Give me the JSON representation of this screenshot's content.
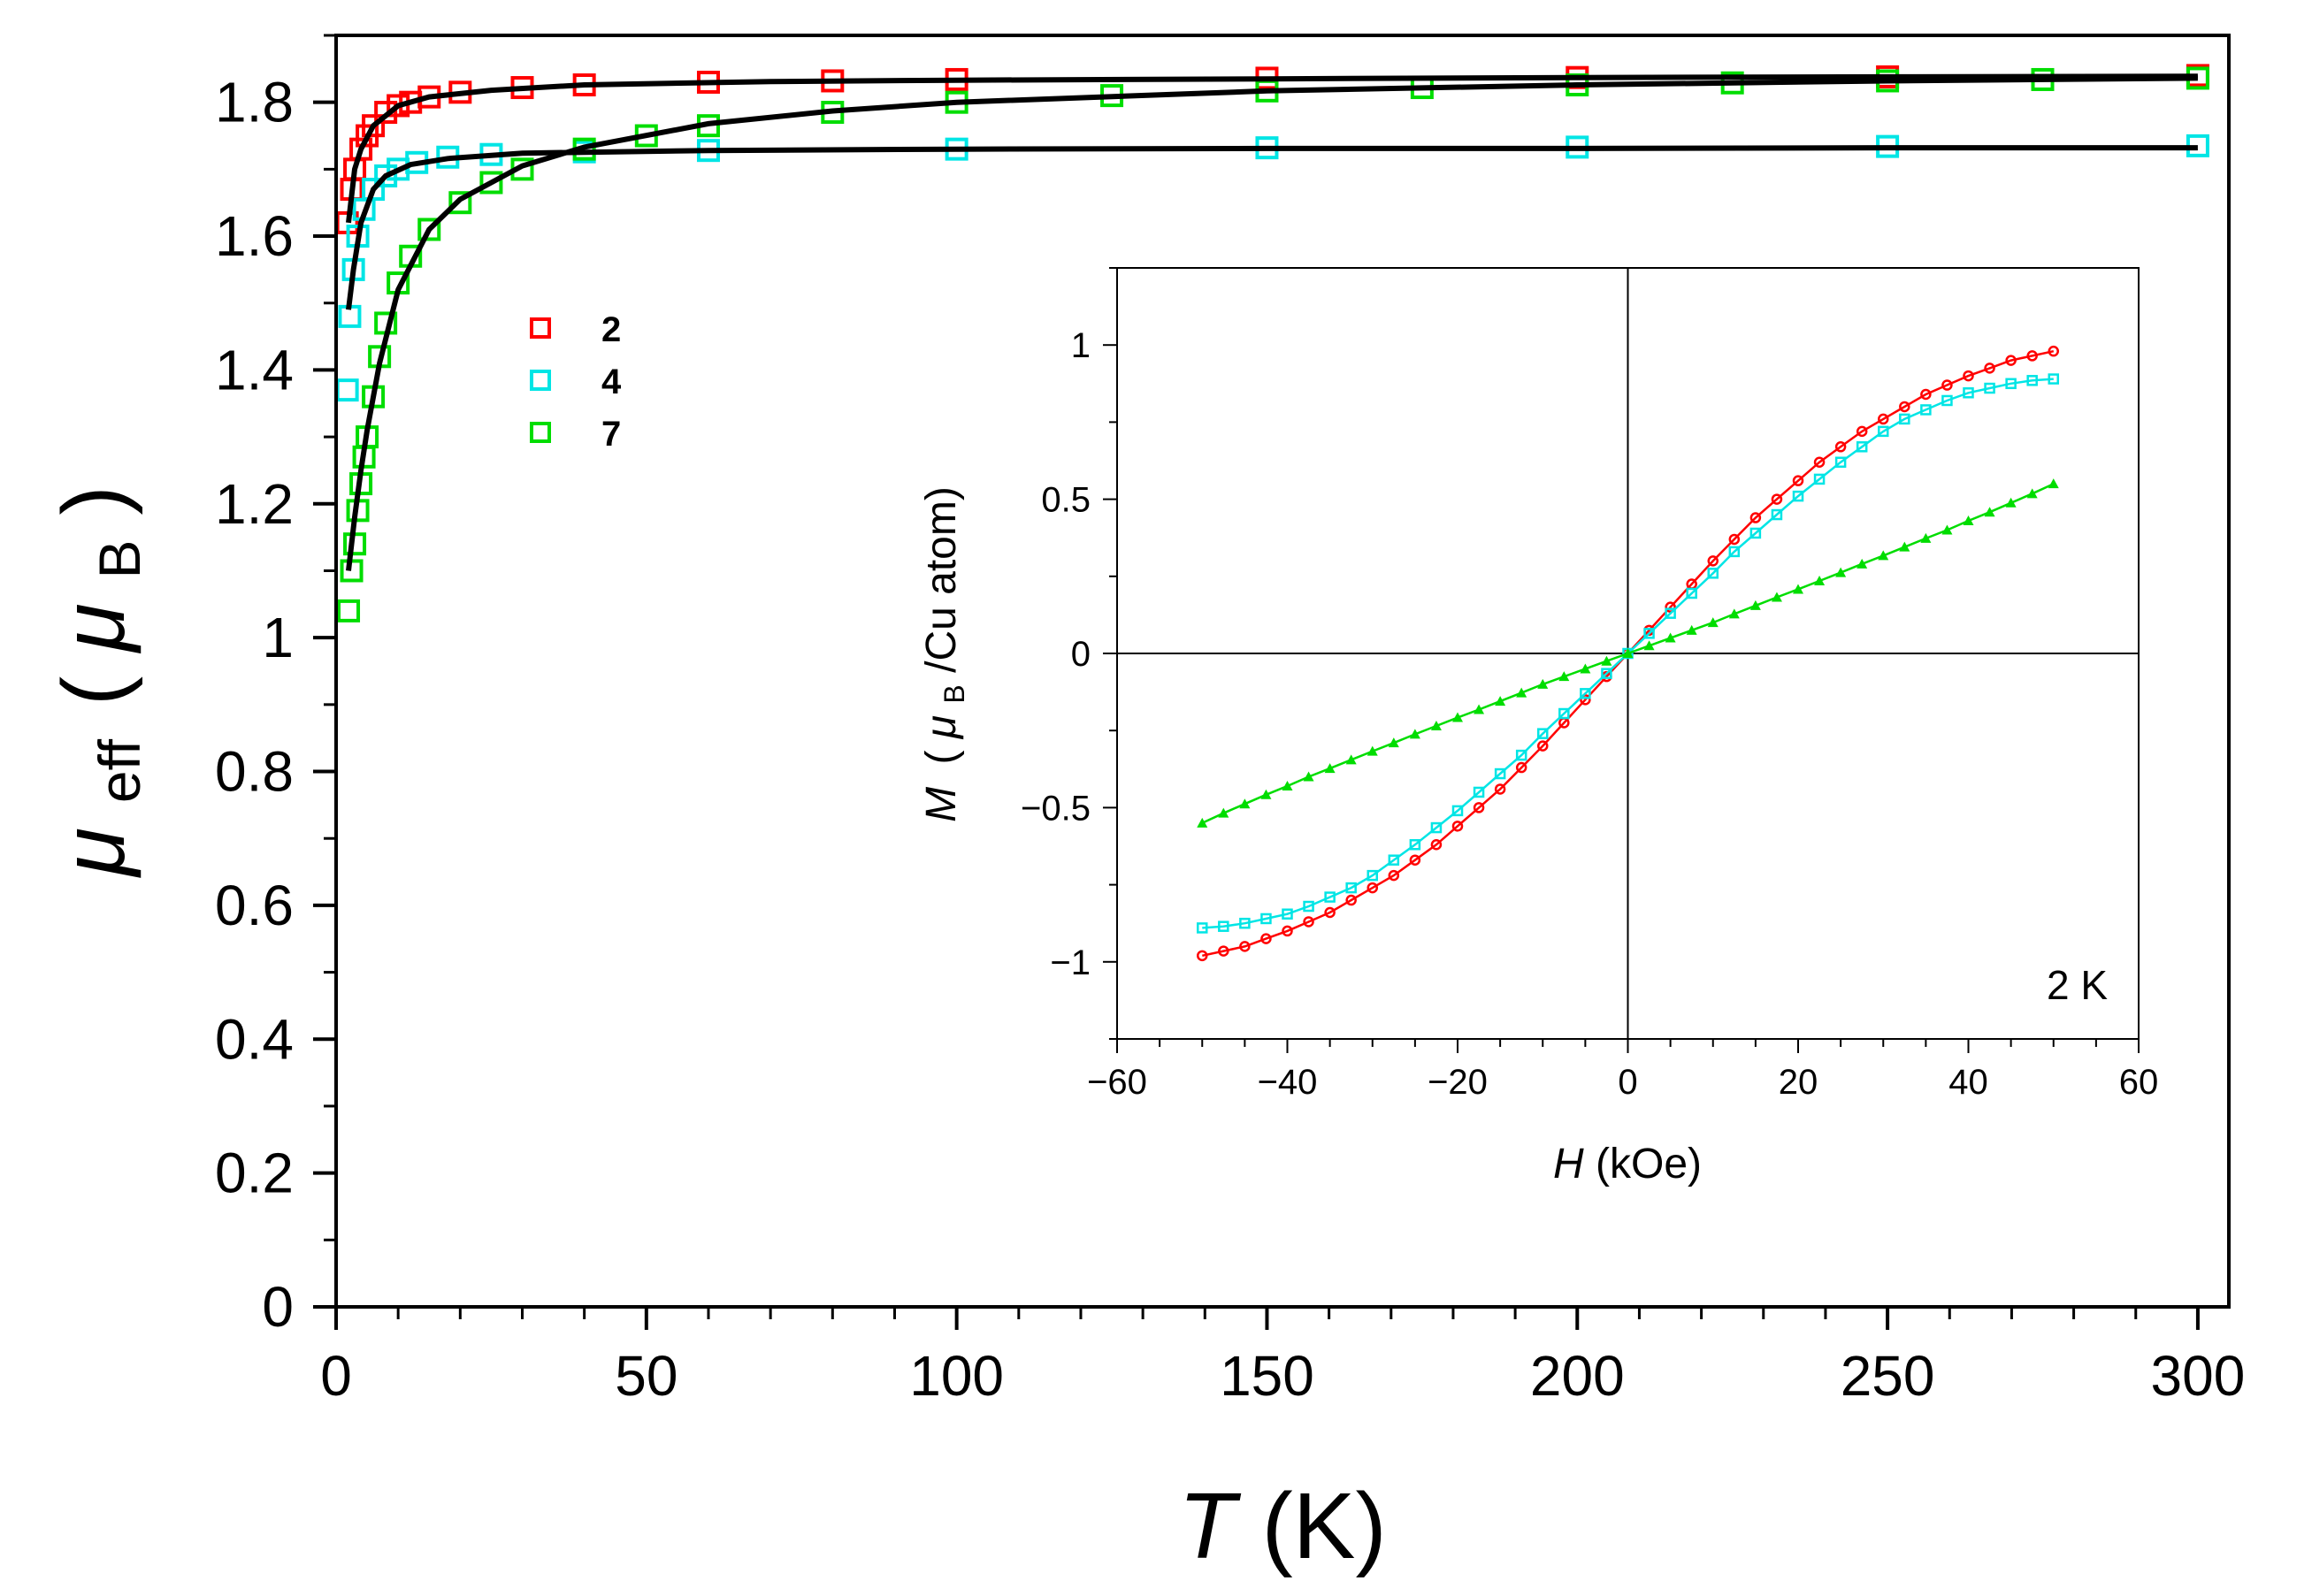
{
  "chart_data": [
    {
      "id": "main",
      "type": "scatter",
      "title": "",
      "xlabel": {
        "symbol": "T",
        "unit": "(K)"
      },
      "ylabel": {
        "mu": "μ",
        "sub": "eff",
        "open": "(",
        "mu_unit": "μ",
        "unit_sub": "B",
        "close": ")"
      },
      "xlim": [
        0,
        305
      ],
      "ylim": [
        0,
        1.9
      ],
      "x_ticks": [
        0,
        50,
        100,
        150,
        200,
        250,
        300
      ],
      "x_tick_labels": [
        "0",
        "50",
        "100",
        "150",
        "200",
        "250",
        "300"
      ],
      "y_ticks": [
        0,
        0.2,
        0.4,
        0.6,
        0.8,
        1,
        1.2,
        1.4,
        1.6,
        1.8
      ],
      "y_tick_labels": [
        "0",
        "0.2",
        "0.4",
        "0.6",
        "0.8",
        "1",
        "1.2",
        "1.4",
        "1.6",
        "1.8"
      ],
      "legend_position": "upper-left",
      "series": [
        {
          "name": "2",
          "color": "#ff0000",
          "marker": "open-square",
          "points": [
            [
              1.8,
              1.62
            ],
            [
              2.5,
              1.67
            ],
            [
              3,
              1.7
            ],
            [
              4,
              1.73
            ],
            [
              5,
              1.75
            ],
            [
              6,
              1.765
            ],
            [
              8,
              1.785
            ],
            [
              10,
              1.795
            ],
            [
              12,
              1.8
            ],
            [
              15,
              1.808
            ],
            [
              20,
              1.815
            ],
            [
              30,
              1.822
            ],
            [
              40,
              1.826
            ],
            [
              60,
              1.83
            ],
            [
              80,
              1.832
            ],
            [
              100,
              1.834
            ],
            [
              150,
              1.836
            ],
            [
              200,
              1.837
            ],
            [
              250,
              1.838
            ],
            [
              300,
              1.84
            ]
          ]
        },
        {
          "name": "4",
          "color": "#00e5e5",
          "marker": "open-square",
          "points": [
            [
              1.8,
              1.37
            ],
            [
              2.2,
              1.48
            ],
            [
              2.8,
              1.55
            ],
            [
              3.5,
              1.6
            ],
            [
              4.5,
              1.64
            ],
            [
              6,
              1.67
            ],
            [
              8,
              1.69
            ],
            [
              10,
              1.7
            ],
            [
              13,
              1.71
            ],
            [
              18,
              1.718
            ],
            [
              25,
              1.722
            ],
            [
              40,
              1.726
            ],
            [
              60,
              1.728
            ],
            [
              100,
              1.73
            ],
            [
              150,
              1.732
            ],
            [
              200,
              1.733
            ],
            [
              250,
              1.734
            ],
            [
              300,
              1.735
            ]
          ]
        },
        {
          "name": "7",
          "color": "#00dd00",
          "marker": "open-square",
          "points": [
            [
              2,
              1.04
            ],
            [
              2.5,
              1.1
            ],
            [
              3,
              1.14
            ],
            [
              3.5,
              1.19
            ],
            [
              4,
              1.23
            ],
            [
              4.5,
              1.27
            ],
            [
              5,
              1.3
            ],
            [
              6,
              1.36
            ],
            [
              7,
              1.42
            ],
            [
              8,
              1.47
            ],
            [
              10,
              1.53
            ],
            [
              12,
              1.57
            ],
            [
              15,
              1.61
            ],
            [
              20,
              1.65
            ],
            [
              25,
              1.68
            ],
            [
              30,
              1.7
            ],
            [
              40,
              1.73
            ],
            [
              50,
              1.75
            ],
            [
              60,
              1.765
            ],
            [
              80,
              1.785
            ],
            [
              100,
              1.8
            ],
            [
              125,
              1.81
            ],
            [
              150,
              1.817
            ],
            [
              175,
              1.822
            ],
            [
              200,
              1.826
            ],
            [
              225,
              1.829
            ],
            [
              250,
              1.832
            ],
            [
              275,
              1.834
            ],
            [
              300,
              1.836
            ]
          ]
        }
      ],
      "fits": [
        {
          "name": "fit-2",
          "color": "#000000",
          "points": [
            [
              2,
              1.62
            ],
            [
              3,
              1.7
            ],
            [
              4,
              1.73
            ],
            [
              6,
              1.765
            ],
            [
              10,
              1.795
            ],
            [
              15,
              1.808
            ],
            [
              25,
              1.818
            ],
            [
              40,
              1.826
            ],
            [
              70,
              1.831
            ],
            [
              100,
              1.833
            ],
            [
              150,
              1.835
            ],
            [
              200,
              1.837
            ],
            [
              250,
              1.838
            ],
            [
              300,
              1.839
            ]
          ]
        },
        {
          "name": "fit-4",
          "color": "#000000",
          "points": [
            [
              2,
              1.49
            ],
            [
              2.8,
              1.55
            ],
            [
              4,
              1.62
            ],
            [
              6,
              1.67
            ],
            [
              8,
              1.69
            ],
            [
              12,
              1.707
            ],
            [
              18,
              1.716
            ],
            [
              30,
              1.724
            ],
            [
              60,
              1.728
            ],
            [
              100,
              1.73
            ],
            [
              150,
              1.731
            ],
            [
              200,
              1.731
            ],
            [
              250,
              1.732
            ],
            [
              300,
              1.732
            ]
          ]
        },
        {
          "name": "fit-7",
          "color": "#000000",
          "points": [
            [
              2,
              1.1
            ],
            [
              3,
              1.18
            ],
            [
              4,
              1.25
            ],
            [
              5,
              1.31
            ],
            [
              7,
              1.41
            ],
            [
              10,
              1.52
            ],
            [
              15,
              1.61
            ],
            [
              20,
              1.655
            ],
            [
              30,
              1.705
            ],
            [
              40,
              1.733
            ],
            [
              60,
              1.768
            ],
            [
              80,
              1.787
            ],
            [
              100,
              1.8
            ],
            [
              150,
              1.817
            ],
            [
              200,
              1.826
            ],
            [
              250,
              1.832
            ],
            [
              300,
              1.836
            ]
          ]
        }
      ]
    },
    {
      "id": "inset",
      "type": "line",
      "title": "",
      "annotation": "2 K",
      "xlabel": {
        "symbol": "H",
        "unit": "(kOe)"
      },
      "ylabel": {
        "symbol": "M",
        "open": "(",
        "mu": "μ",
        "sub": "B",
        "rest": "/Cu atom)"
      },
      "xlim": [
        -60,
        60
      ],
      "ylim": [
        -1.25,
        1.25
      ],
      "x_ticks": [
        -60,
        -40,
        -20,
        0,
        20,
        40,
        60
      ],
      "x_tick_labels": [
        "−60",
        "−40",
        "−20",
        "0",
        "20",
        "40",
        "60"
      ],
      "y_ticks": [
        -1,
        -0.5,
        0,
        0.5,
        1
      ],
      "y_tick_labels": [
        "−1",
        "−0.5",
        "0",
        "0.5",
        "1"
      ],
      "series": [
        {
          "name": "2",
          "color": "#ff0000",
          "marker": "open-circle",
          "points": [
            [
              0,
              0
            ],
            [
              2.5,
              0.075
            ],
            [
              5,
              0.15
            ],
            [
              7.5,
              0.225
            ],
            [
              10,
              0.3
            ],
            [
              12.5,
              0.37
            ],
            [
              15,
              0.44
            ],
            [
              17.5,
              0.5
            ],
            [
              20,
              0.56
            ],
            [
              22.5,
              0.62
            ],
            [
              25,
              0.67
            ],
            [
              27.5,
              0.72
            ],
            [
              30,
              0.76
            ],
            [
              32.5,
              0.8
            ],
            [
              35,
              0.84
            ],
            [
              37.5,
              0.87
            ],
            [
              40,
              0.9
            ],
            [
              42.5,
              0.925
            ],
            [
              45,
              0.95
            ],
            [
              47.5,
              0.965
            ],
            [
              50,
              0.98
            ],
            [
              -2.5,
              -0.075
            ],
            [
              -5,
              -0.15
            ],
            [
              -7.5,
              -0.225
            ],
            [
              -10,
              -0.3
            ],
            [
              -12.5,
              -0.37
            ],
            [
              -15,
              -0.44
            ],
            [
              -17.5,
              -0.5
            ],
            [
              -20,
              -0.56
            ],
            [
              -22.5,
              -0.62
            ],
            [
              -25,
              -0.67
            ],
            [
              -27.5,
              -0.72
            ],
            [
              -30,
              -0.76
            ],
            [
              -32.5,
              -0.8
            ],
            [
              -35,
              -0.84
            ],
            [
              -37.5,
              -0.87
            ],
            [
              -40,
              -0.9
            ],
            [
              -42.5,
              -0.925
            ],
            [
              -45,
              -0.95
            ],
            [
              -47.5,
              -0.965
            ],
            [
              -50,
              -0.98
            ]
          ]
        },
        {
          "name": "4",
          "color": "#00e5e5",
          "marker": "open-square",
          "points": [
            [
              0,
              0
            ],
            [
              2.5,
              0.065
            ],
            [
              5,
              0.13
            ],
            [
              7.5,
              0.195
            ],
            [
              10,
              0.26
            ],
            [
              12.5,
              0.33
            ],
            [
              15,
              0.39
            ],
            [
              17.5,
              0.45
            ],
            [
              20,
              0.51
            ],
            [
              22.5,
              0.565
            ],
            [
              25,
              0.62
            ],
            [
              27.5,
              0.67
            ],
            [
              30,
              0.72
            ],
            [
              32.5,
              0.76
            ],
            [
              35,
              0.79
            ],
            [
              37.5,
              0.82
            ],
            [
              40,
              0.845
            ],
            [
              42.5,
              0.86
            ],
            [
              45,
              0.875
            ],
            [
              47.5,
              0.885
            ],
            [
              50,
              0.89
            ],
            [
              -2.5,
              -0.065
            ],
            [
              -5,
              -0.13
            ],
            [
              -7.5,
              -0.195
            ],
            [
              -10,
              -0.26
            ],
            [
              -12.5,
              -0.33
            ],
            [
              -15,
              -0.39
            ],
            [
              -17.5,
              -0.45
            ],
            [
              -20,
              -0.51
            ],
            [
              -22.5,
              -0.565
            ],
            [
              -25,
              -0.62
            ],
            [
              -27.5,
              -0.67
            ],
            [
              -30,
              -0.72
            ],
            [
              -32.5,
              -0.76
            ],
            [
              -35,
              -0.79
            ],
            [
              -37.5,
              -0.82
            ],
            [
              -40,
              -0.845
            ],
            [
              -42.5,
              -0.86
            ],
            [
              -45,
              -0.875
            ],
            [
              -47.5,
              -0.885
            ],
            [
              -50,
              -0.89
            ]
          ]
        },
        {
          "name": "7",
          "color": "#00dd00",
          "marker": "filled-triangle",
          "points": [
            [
              0,
              0
            ],
            [
              2.5,
              0.025
            ],
            [
              5,
              0.05
            ],
            [
              7.5,
              0.075
            ],
            [
              10,
              0.1
            ],
            [
              12.5,
              0.128
            ],
            [
              15,
              0.155
            ],
            [
              17.5,
              0.182
            ],
            [
              20,
              0.208
            ],
            [
              22.5,
              0.235
            ],
            [
              25,
              0.262
            ],
            [
              27.5,
              0.29
            ],
            [
              30,
              0.317
            ],
            [
              32.5,
              0.345
            ],
            [
              35,
              0.373
            ],
            [
              37.5,
              0.4
            ],
            [
              40,
              0.43
            ],
            [
              42.5,
              0.458
            ],
            [
              45,
              0.488
            ],
            [
              47.5,
              0.518
            ],
            [
              50,
              0.55
            ],
            [
              -2.5,
              -0.025
            ],
            [
              -5,
              -0.05
            ],
            [
              -7.5,
              -0.075
            ],
            [
              -10,
              -0.1
            ],
            [
              -12.5,
              -0.128
            ],
            [
              -15,
              -0.155
            ],
            [
              -17.5,
              -0.182
            ],
            [
              -20,
              -0.208
            ],
            [
              -22.5,
              -0.235
            ],
            [
              -25,
              -0.262
            ],
            [
              -27.5,
              -0.29
            ],
            [
              -30,
              -0.317
            ],
            [
              -32.5,
              -0.345
            ],
            [
              -35,
              -0.373
            ],
            [
              -37.5,
              -0.4
            ],
            [
              -40,
              -0.43
            ],
            [
              -42.5,
              -0.458
            ],
            [
              -45,
              -0.488
            ],
            [
              -47.5,
              -0.518
            ],
            [
              -50,
              -0.55
            ]
          ]
        }
      ]
    }
  ]
}
